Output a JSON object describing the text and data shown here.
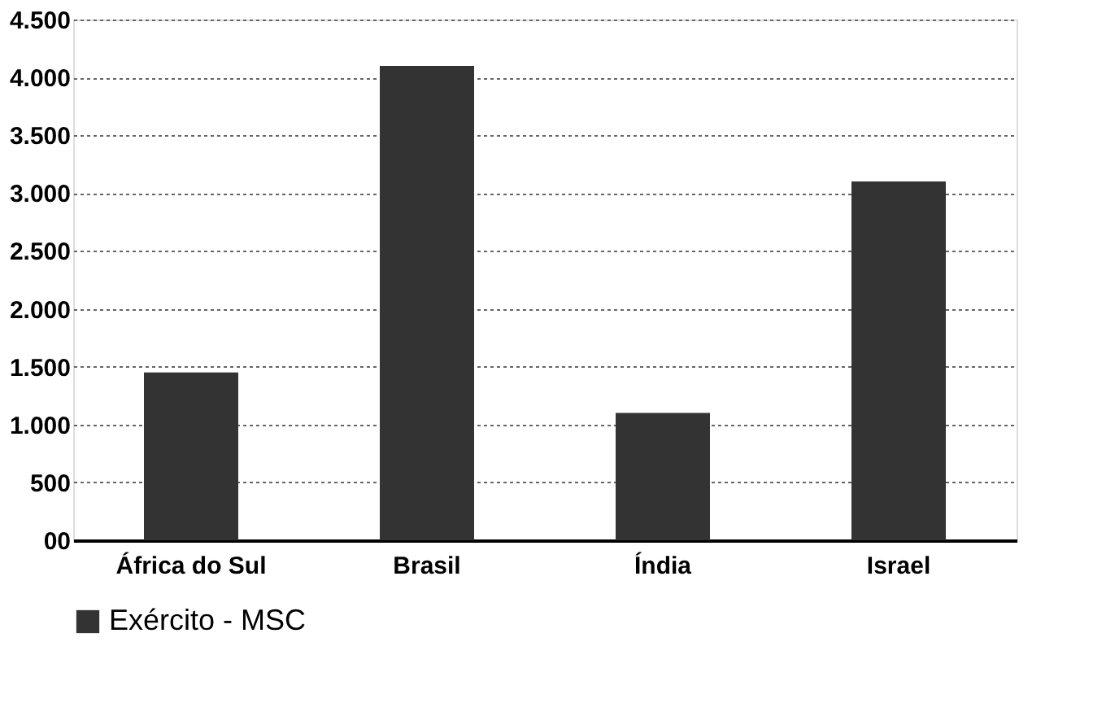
{
  "chart_data": {
    "type": "bar",
    "categories": [
      "África do Sul",
      "Brasil",
      "Índia",
      "Israel"
    ],
    "series": [
      {
        "name": "Exército - MSC",
        "color": "#333333",
        "values": [
          1450,
          4100,
          1100,
          3100
        ]
      }
    ],
    "ylim": [
      0,
      4500
    ],
    "yticks": [
      {
        "value": 0,
        "label": "00"
      },
      500,
      {
        "value": 1000,
        "label": "1.000"
      },
      {
        "value": 1500,
        "label": "1.500"
      },
      {
        "value": 2000,
        "label": "2.000"
      },
      {
        "value": 2500,
        "label": "2.500"
      },
      {
        "value": 3000,
        "label": "3.000"
      },
      {
        "value": 3500,
        "label": "3.500"
      },
      {
        "value": 4000,
        "label": "4.000"
      },
      {
        "value": 4500,
        "label": "4.500"
      }
    ],
    "grid": "y",
    "legend": "bottom"
  }
}
